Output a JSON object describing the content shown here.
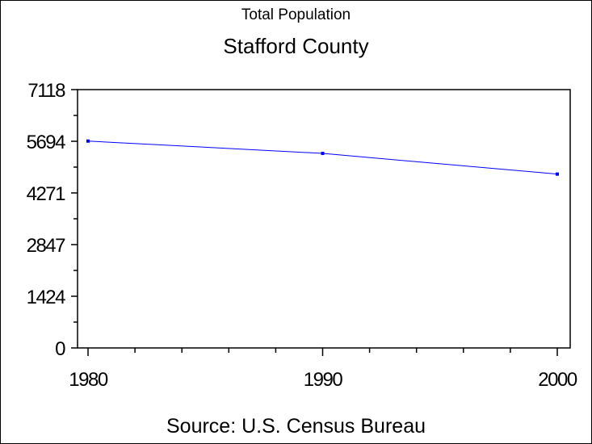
{
  "chart_data": {
    "type": "line",
    "subtitle": "Total Population",
    "title": "Stafford County",
    "footnote": "Source: U.S. Census Bureau",
    "x": [
      1980,
      1990,
      2000
    ],
    "series": [
      {
        "values": [
          5700,
          5360,
          4790
        ]
      }
    ],
    "xticks": [
      "1980",
      "1990",
      "2000"
    ],
    "yticks": [
      "0",
      "1424",
      "2847",
      "4271",
      "5694",
      "7118"
    ],
    "ytick_values": [
      0,
      1424,
      2847,
      4271,
      5694,
      7118
    ],
    "xlim": [
      1980,
      2000
    ],
    "ylim": [
      0,
      7118
    ],
    "grid": false,
    "line_color": "#0000ff"
  }
}
